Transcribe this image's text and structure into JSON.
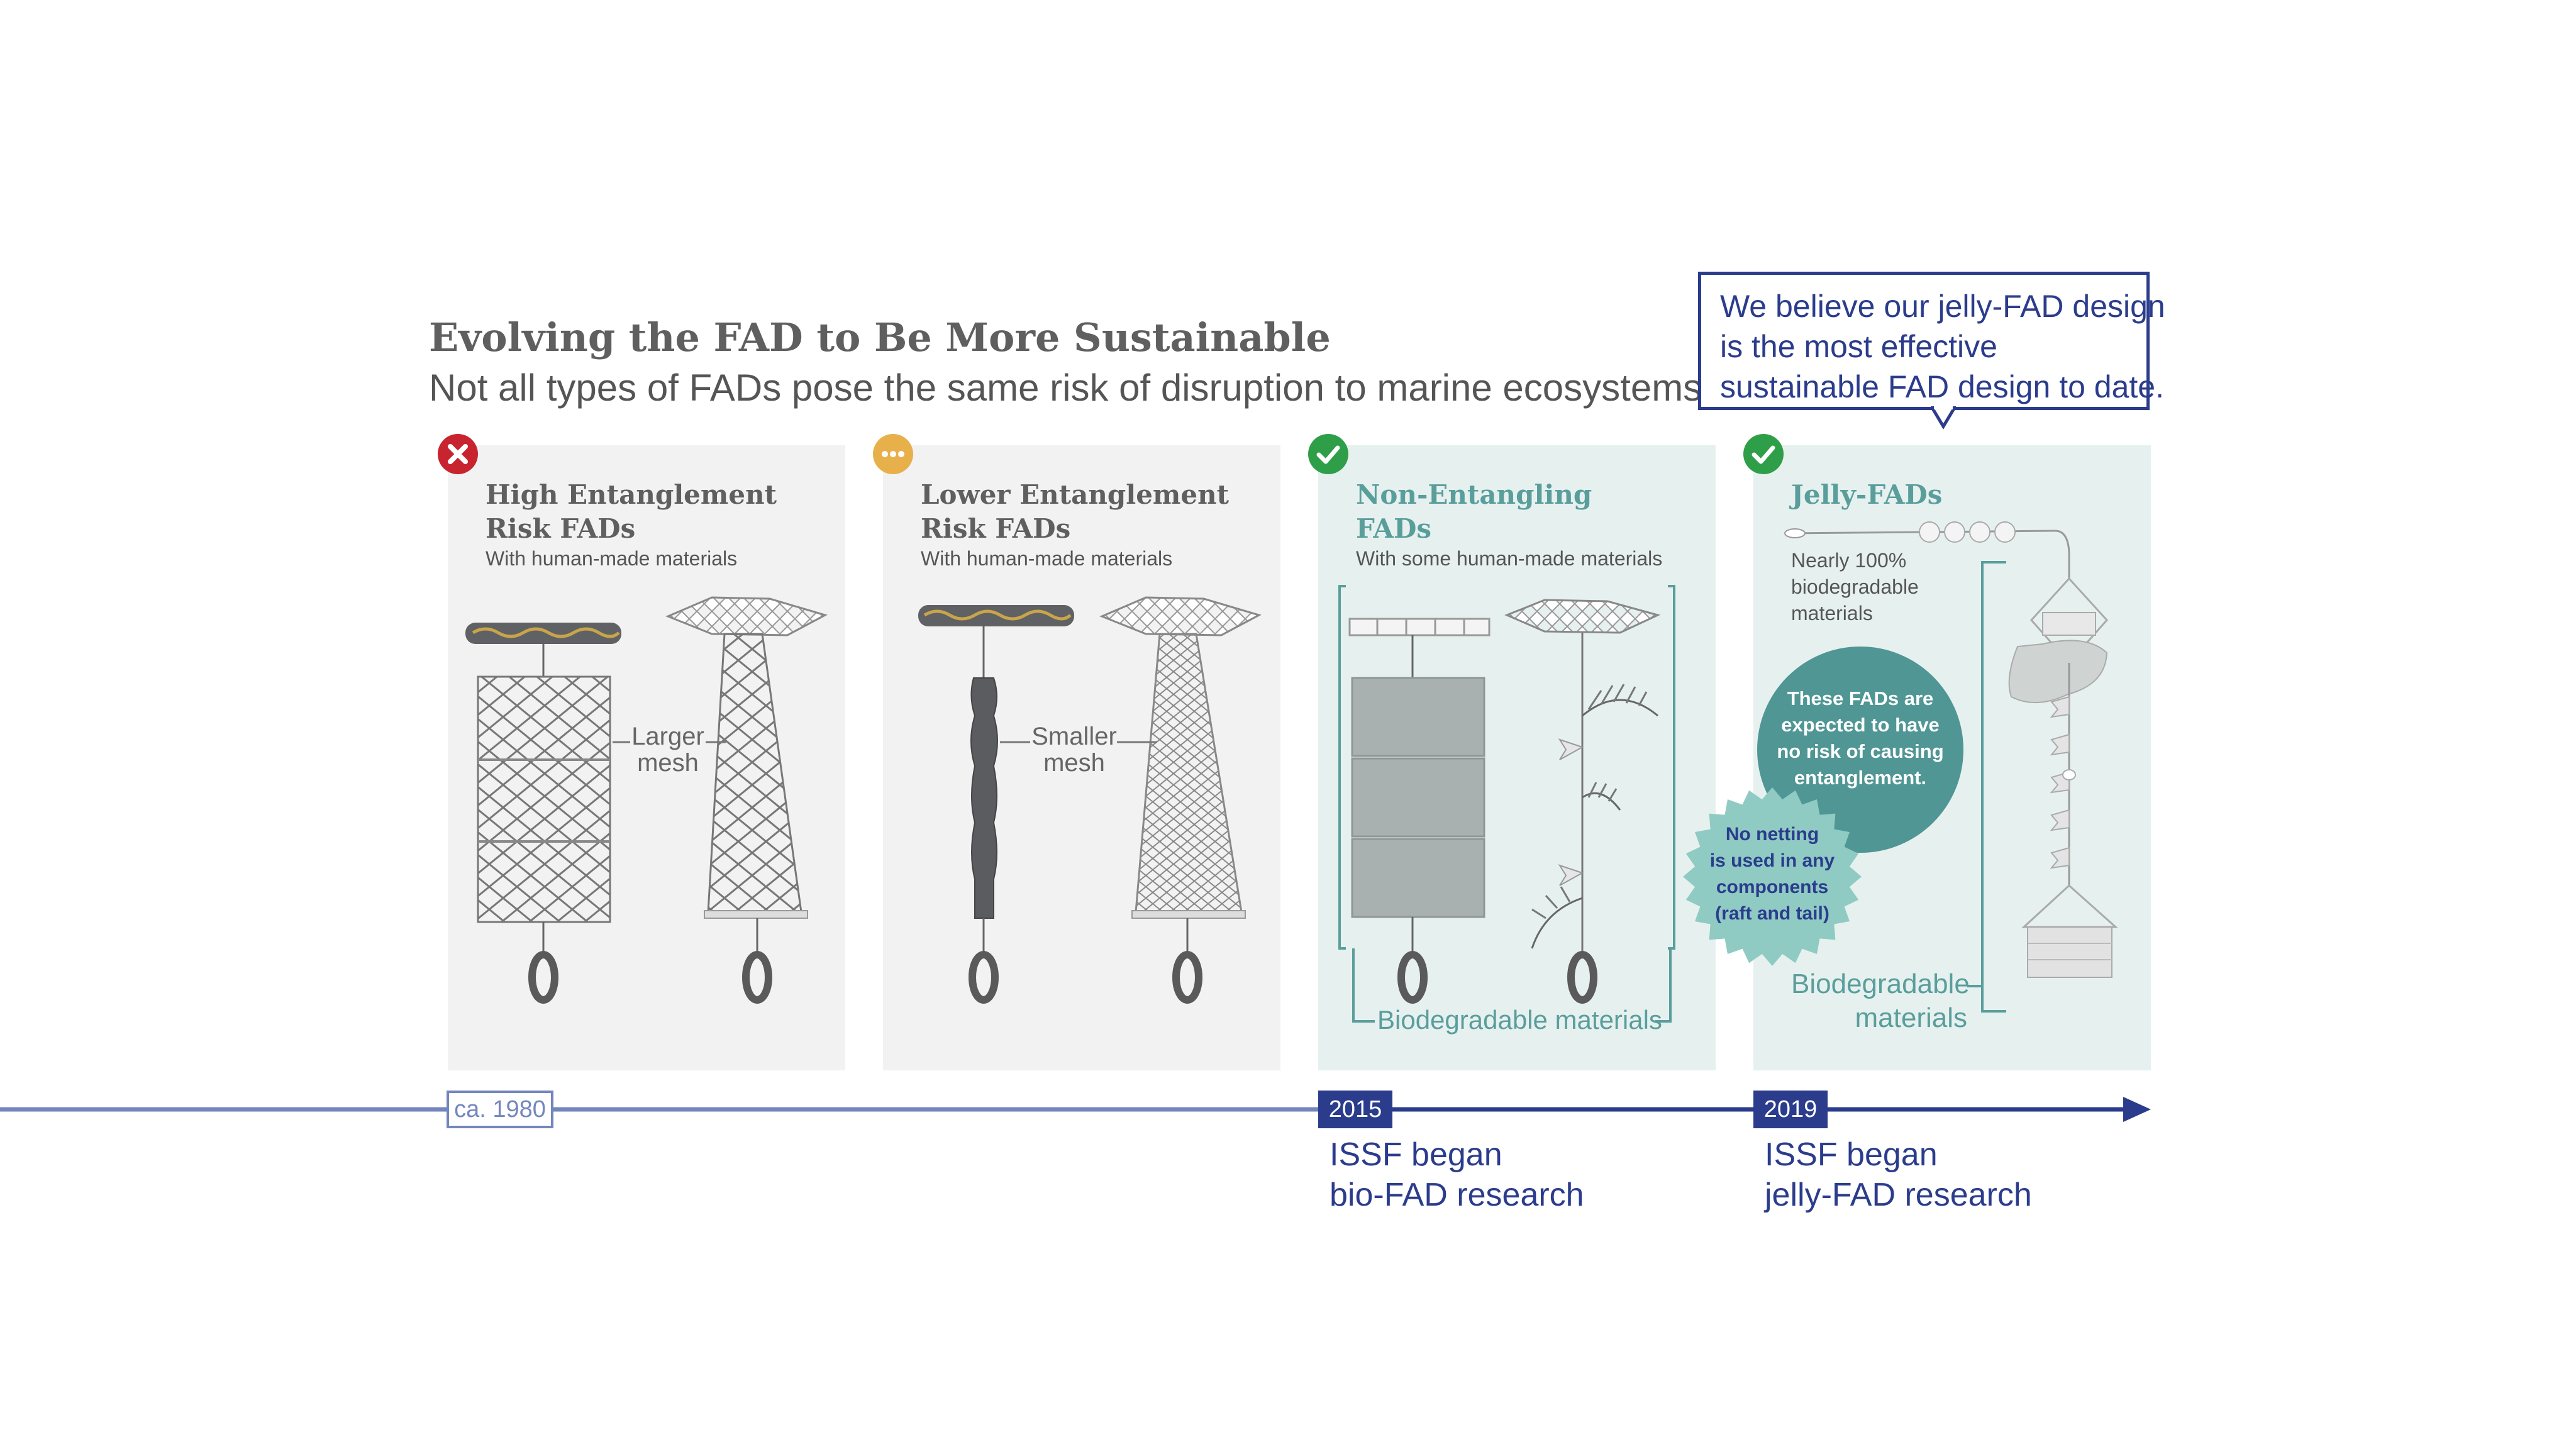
{
  "title": "Evolving the FAD to Be More Sustainable",
  "subtitle": "Not all types of FADs pose the same risk of disruption to marine ecosystems.",
  "callout": {
    "line1": "We believe our jelly-FAD design",
    "line2": "is the most effective",
    "line3": "sustainable FAD design to date."
  },
  "panels": [
    {
      "status": "x-icon",
      "title_line1": "High Entanglement",
      "title_line2": "Risk FADs",
      "subtitle": "With human-made materials",
      "mesh_label_1": "Larger",
      "mesh_label_2": "mesh"
    },
    {
      "status": "ellipsis-icon",
      "title_line1": "Lower Entanglement",
      "title_line2": "Risk FADs",
      "subtitle": "With human-made materials",
      "mesh_label_1": "Smaller",
      "mesh_label_2": "mesh"
    },
    {
      "status": "check-icon",
      "title_line1": "Non-Entangling",
      "title_line2": "FADs",
      "subtitle": "With some human-made materials",
      "bracket_label": "Biodegradable materials"
    },
    {
      "status": "check-icon",
      "title_line1": "Jelly-FADs",
      "sub_line1": "Nearly 100%",
      "sub_line2": "biodegradable",
      "sub_line3": "materials",
      "circle_line1": "These FADs are",
      "circle_line2": "expected to have",
      "circle_line3": "no risk of causing",
      "circle_line4": "entanglement.",
      "star_line1": "No netting",
      "star_line2": "is used in any",
      "star_line3": "components",
      "star_line4": "(raft and tail)",
      "bio_line1": "Biodegradable",
      "bio_line2": "materials"
    }
  ],
  "timeline": {
    "start_label": "ca. 1980",
    "events": [
      {
        "year": "2015",
        "line1": "ISSF began",
        "line2": "bio-FAD research"
      },
      {
        "year": "2019",
        "line1": "ISSF began",
        "line2": "jelly-FAD research"
      }
    ]
  },
  "colors": {
    "navy": "#2b3c8c",
    "light_navy": "#7386be",
    "teal": "#5a9e9c",
    "teal_dark": "#4f9694",
    "teal_light": "#8fcbc3",
    "red": "#c8242f",
    "amber": "#e8b04a",
    "green": "#2f9e48"
  }
}
